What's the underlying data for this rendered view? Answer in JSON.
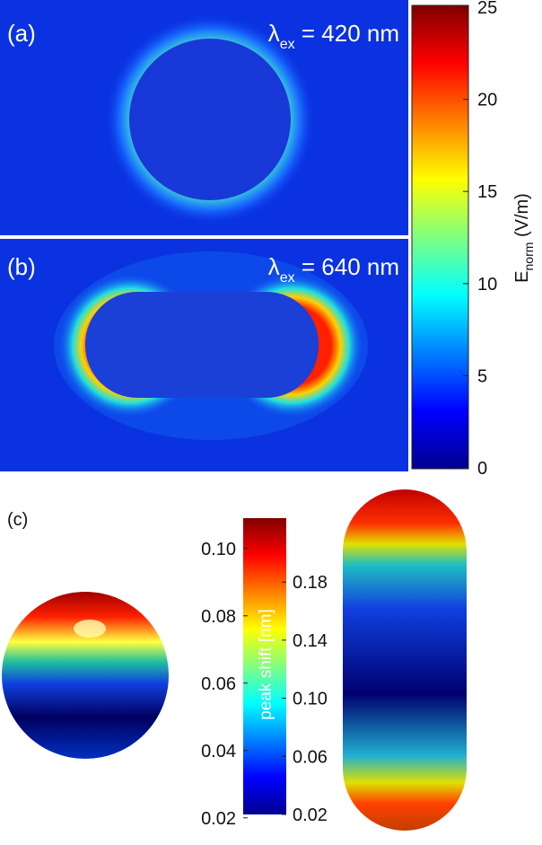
{
  "figure": {
    "panels": [
      {
        "label": "(a)",
        "lambda": "λ",
        "lambda_sub": "ex",
        "lambda_text": " = 420 nm"
      },
      {
        "label": "(b)",
        "lambda": "λ",
        "lambda_sub": "ex",
        "lambda_text": " = 640 nm"
      },
      {
        "label": "(c)"
      }
    ],
    "colorbar_field": {
      "label_main": "E",
      "label_sub": "norm",
      "label_unit": " (V/m)",
      "lim": [
        0,
        25
      ],
      "ticks": [
        0,
        5,
        10,
        15,
        20,
        25
      ]
    },
    "colorbar_shift": {
      "label": "peak shift [nm]",
      "left_lim": [
        0.021,
        0.109
      ],
      "left_ticks": [
        0.02,
        0.04,
        0.06,
        0.08,
        {
          "value": 0.1,
          "label": "0.10"
        }
      ],
      "right_lim": [
        0.02,
        0.224
      ],
      "right_ticks": [
        0.02,
        0.06,
        {
          "value": 0.1,
          "label": "0.10"
        },
        0.14,
        0.18
      ]
    }
  }
}
